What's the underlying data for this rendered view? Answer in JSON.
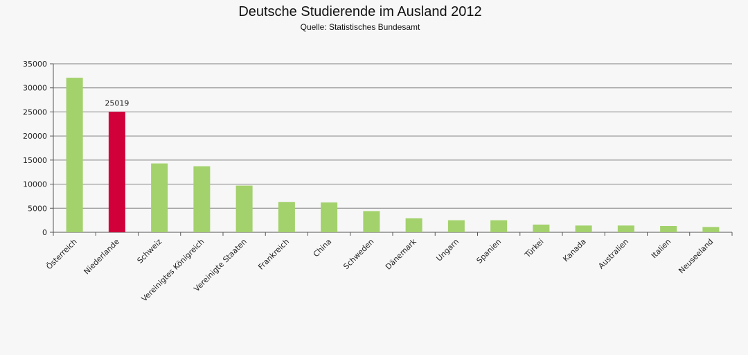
{
  "chart_data": {
    "type": "bar",
    "title": "Deutsche Studierende im Ausland 2012",
    "subtitle": "Quelle: Statistisches Bundesamt",
    "xlabel": "",
    "ylabel": "",
    "ylim": [
      0,
      35000
    ],
    "yticks": [
      0,
      5000,
      10000,
      15000,
      20000,
      25000,
      30000,
      35000
    ],
    "grid": true,
    "categories": [
      "Österreich",
      "Niederlande",
      "Schweiz",
      "Vereinigtes Königreich",
      "Vereinigte Staaten",
      "Frankreich",
      "China",
      "Schweden",
      "Dänemark",
      "Ungarn",
      "Spanien",
      "Türkei",
      "Kanada",
      "Australien",
      "Italien",
      "Neuseeland"
    ],
    "values": [
      32100,
      25019,
      14300,
      13700,
      9700,
      6300,
      6200,
      4400,
      2900,
      2500,
      2500,
      1600,
      1400,
      1400,
      1300,
      1100
    ],
    "data_labels": [
      null,
      "25019",
      null,
      null,
      null,
      null,
      null,
      null,
      null,
      null,
      null,
      null,
      null,
      null,
      null,
      null
    ],
    "colors": {
      "default_bar": "#a3d16b",
      "highlight_bar": "#d1003a",
      "gridline": "#7f7f7f",
      "axis": "#555555"
    },
    "highlight_index": 1
  }
}
